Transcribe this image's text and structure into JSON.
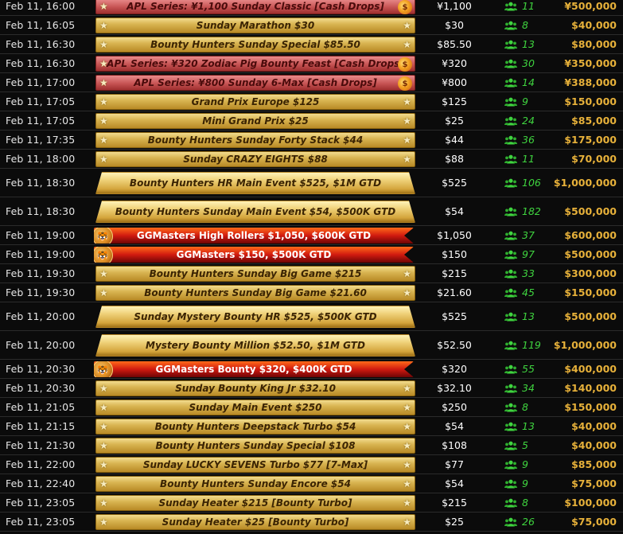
{
  "rows": [
    {
      "date": "Feb 11, 16:00",
      "name": "APL Series: ¥1,100 Sunday Classic [Cash Drops]",
      "style": "pink",
      "buyin": "¥1,100",
      "players": "11",
      "prize": "¥500,000"
    },
    {
      "date": "Feb 11, 16:05",
      "name": "Sunday Marathon $30",
      "style": "gold",
      "buyin": "$30",
      "players": "8",
      "prize": "$40,000"
    },
    {
      "date": "Feb 11, 16:30",
      "name": "Bounty Hunters Sunday Special $85.50",
      "style": "gold",
      "buyin": "$85.50",
      "players": "13",
      "prize": "$80,000"
    },
    {
      "date": "Feb 11, 16:30",
      "name": "APL Series: ¥320 Zodiac Pig Bounty Feast [Cash Drops]",
      "style": "pink",
      "buyin": "¥320",
      "players": "30",
      "prize": "¥350,000"
    },
    {
      "date": "Feb 11, 17:00",
      "name": "APL Series: ¥800 Sunday 6-Max [Cash Drops]",
      "style": "pink",
      "buyin": "¥800",
      "players": "14",
      "prize": "¥388,000"
    },
    {
      "date": "Feb 11, 17:05",
      "name": "Grand Prix Europe $125",
      "style": "gold",
      "buyin": "$125",
      "players": "9",
      "prize": "$150,000"
    },
    {
      "date": "Feb 11, 17:05",
      "name": "Mini Grand Prix $25",
      "style": "gold",
      "buyin": "$25",
      "players": "24",
      "prize": "$85,000"
    },
    {
      "date": "Feb 11, 17:35",
      "name": "Bounty Hunters Sunday Forty Stack $44",
      "style": "gold",
      "buyin": "$44",
      "players": "36",
      "prize": "$175,000"
    },
    {
      "date": "Feb 11, 18:00",
      "name": "Sunday CRAZY EIGHTS $88",
      "style": "gold",
      "buyin": "$88",
      "players": "11",
      "prize": "$70,000"
    },
    {
      "date": "Feb 11, 18:30",
      "name": "Bounty Hunters HR Main Event $525, $1M GTD",
      "style": "goldbig",
      "buyin": "$525",
      "players": "106",
      "prize": "$1,000,000"
    },
    {
      "date": "Feb 11, 18:30",
      "name": "Bounty Hunters Sunday Main Event $54, $500K GTD",
      "style": "goldbig",
      "buyin": "$54",
      "players": "182",
      "prize": "$500,000"
    },
    {
      "date": "Feb 11, 19:00",
      "name": "GGMasters High Rollers $1,050, $600K GTD",
      "style": "red",
      "buyin": "$1,050",
      "players": "37",
      "prize": "$600,000"
    },
    {
      "date": "Feb 11, 19:00",
      "name": "GGMasters $150, $500K GTD",
      "style": "red",
      "buyin": "$150",
      "players": "97",
      "prize": "$500,000"
    },
    {
      "date": "Feb 11, 19:30",
      "name": "Bounty Hunters Sunday Big Game $215",
      "style": "gold",
      "buyin": "$215",
      "players": "33",
      "prize": "$300,000"
    },
    {
      "date": "Feb 11, 19:30",
      "name": "Bounty Hunters Sunday Big Game $21.60",
      "style": "gold",
      "buyin": "$21.60",
      "players": "45",
      "prize": "$150,000"
    },
    {
      "date": "Feb 11, 20:00",
      "name": "Sunday Mystery Bounty HR $525, $500K GTD",
      "style": "goldbig",
      "buyin": "$525",
      "players": "13",
      "prize": "$500,000"
    },
    {
      "date": "Feb 11, 20:00",
      "name": "Mystery Bounty Million $52.50, $1M GTD",
      "style": "goldbig",
      "buyin": "$52.50",
      "players": "119",
      "prize": "$1,000,000"
    },
    {
      "date": "Feb 11, 20:30",
      "name": "GGMasters Bounty $320, $400K GTD",
      "style": "red",
      "buyin": "$320",
      "players": "55",
      "prize": "$400,000"
    },
    {
      "date": "Feb 11, 20:30",
      "name": "Sunday Bounty King Jr $32.10",
      "style": "gold",
      "buyin": "$32.10",
      "players": "34",
      "prize": "$140,000"
    },
    {
      "date": "Feb 11, 21:05",
      "name": "Sunday Main Event $250",
      "style": "gold",
      "buyin": "$250",
      "players": "8",
      "prize": "$150,000"
    },
    {
      "date": "Feb 11, 21:15",
      "name": "Bounty Hunters Deepstack Turbo $54",
      "style": "gold",
      "buyin": "$54",
      "players": "13",
      "prize": "$40,000"
    },
    {
      "date": "Feb 11, 21:30",
      "name": "Bounty Hunters Sunday Special $108",
      "style": "gold",
      "buyin": "$108",
      "players": "5",
      "prize": "$40,000"
    },
    {
      "date": "Feb 11, 22:00",
      "name": "Sunday LUCKY SEVENS Turbo $77 [7-Max]",
      "style": "gold",
      "buyin": "$77",
      "players": "9",
      "prize": "$85,000"
    },
    {
      "date": "Feb 11, 22:40",
      "name": "Bounty Hunters Sunday Encore $54",
      "style": "gold",
      "buyin": "$54",
      "players": "9",
      "prize": "$75,000"
    },
    {
      "date": "Feb 11, 23:05",
      "name": "Sunday Heater $215 [Bounty Turbo]",
      "style": "gold",
      "buyin": "$215",
      "players": "8",
      "prize": "$100,000"
    },
    {
      "date": "Feb 11, 23:05",
      "name": "Sunday Heater $25 [Bounty Turbo]",
      "style": "gold",
      "buyin": "$25",
      "players": "26",
      "prize": "$75,000"
    }
  ],
  "colors": {
    "players_green": "#3fd33f",
    "prize_gold": "#e7b13a",
    "background": "#0a0a0a"
  },
  "icons": {
    "star": "star-icon",
    "players": "players-icon",
    "cash_drop": "fire-icon",
    "ggmasters": "tiger-icon"
  }
}
